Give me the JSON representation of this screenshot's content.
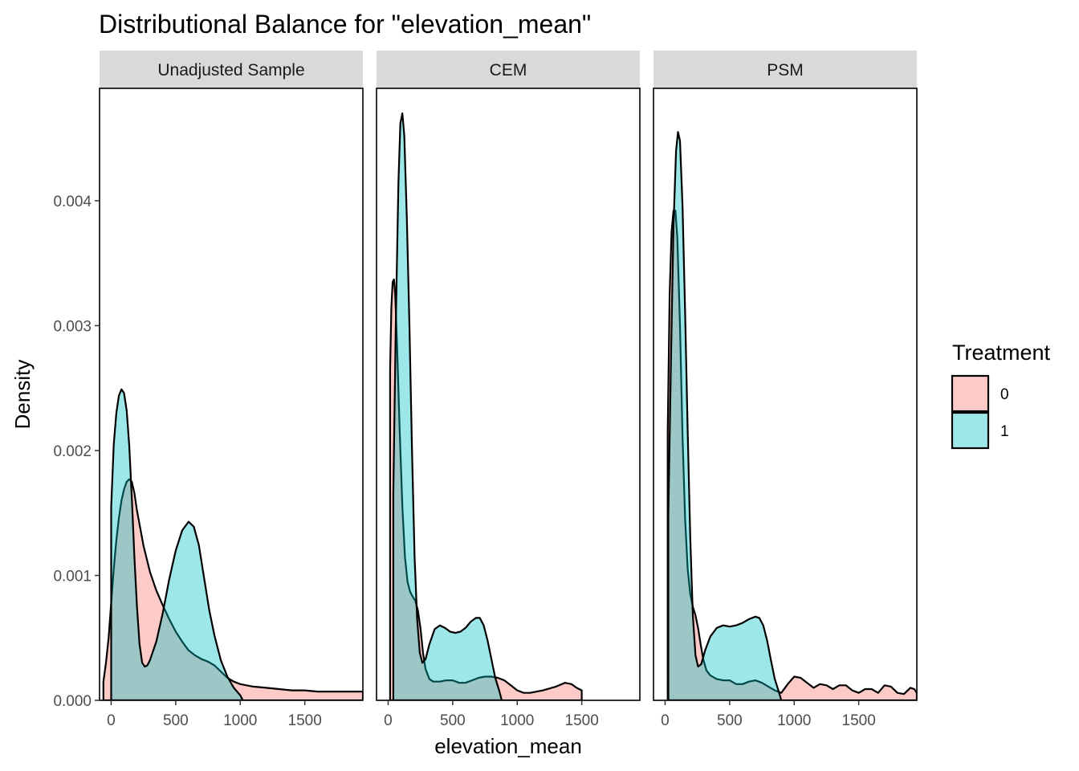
{
  "chart_data": {
    "type": "area",
    "title": "Distributional Balance for \"elevation_mean\"",
    "xlabel": "elevation_mean",
    "ylabel": "Density",
    "xlim": [
      -90,
      1950
    ],
    "ylim": [
      0,
      0.0049
    ],
    "x_ticks": [
      0,
      500,
      1000,
      1500
    ],
    "x_tick_labels": [
      "0",
      "500",
      "1000",
      "1500"
    ],
    "y_ticks": [
      0,
      0.001,
      0.002,
      0.003,
      0.004
    ],
    "y_tick_labels": [
      "0.000",
      "0.001",
      "0.002",
      "0.003",
      "0.004"
    ],
    "legend": {
      "title": "Treatment",
      "position": "right",
      "entries": [
        {
          "label": "0",
          "color": "#F8766D"
        },
        {
          "label": "1",
          "color": "#00BFC4"
        }
      ]
    },
    "fill_alpha": 0.38,
    "panels": [
      {
        "name": "Unadjusted Sample",
        "series": [
          {
            "name": "0",
            "color": "#F8766D",
            "points": [
              [
                -60,
                0
              ],
              [
                -60,
                0.00015
              ],
              [
                -40,
                0.0003
              ],
              [
                -20,
                0.0005
              ],
              [
                0,
                0.00078
              ],
              [
                20,
                0.00105
              ],
              [
                40,
                0.00128
              ],
              [
                60,
                0.00146
              ],
              [
                80,
                0.0016
              ],
              [
                100,
                0.00169
              ],
              [
                120,
                0.00175
              ],
              [
                140,
                0.00177
              ],
              [
                160,
                0.00175
              ],
              [
                180,
                0.00166
              ],
              [
                200,
                0.00152
              ],
              [
                250,
                0.00124
              ],
              [
                300,
                0.00103
              ],
              [
                350,
                0.00088
              ],
              [
                400,
                0.00076
              ],
              [
                450,
                0.00065
              ],
              [
                500,
                0.00055
              ],
              [
                550,
                0.00047
              ],
              [
                600,
                0.0004
              ],
              [
                650,
                0.00036
              ],
              [
                700,
                0.00033
              ],
              [
                750,
                0.00031
              ],
              [
                800,
                0.00028
              ],
              [
                850,
                0.00023
              ],
              [
                900,
                0.00018
              ],
              [
                950,
                0.00015
              ],
              [
                1000,
                0.00013
              ],
              [
                1100,
                0.00011
              ],
              [
                1200,
                0.0001
              ],
              [
                1300,
                9e-05
              ],
              [
                1400,
                8e-05
              ],
              [
                1500,
                8e-05
              ],
              [
                1600,
                7e-05
              ],
              [
                1700,
                7e-05
              ],
              [
                1800,
                7e-05
              ],
              [
                1950,
                7e-05
              ],
              [
                1950,
                0
              ]
            ]
          },
          {
            "name": "1",
            "color": "#00BFC4",
            "points": [
              [
                0,
                0
              ],
              [
                0,
                0.00155
              ],
              [
                20,
                0.00205
              ],
              [
                40,
                0.0023
              ],
              [
                60,
                0.00244
              ],
              [
                80,
                0.00249
              ],
              [
                100,
                0.00246
              ],
              [
                120,
                0.00232
              ],
              [
                140,
                0.00204
              ],
              [
                160,
                0.00162
              ],
              [
                180,
                0.00115
              ],
              [
                200,
                0.00075
              ],
              [
                220,
                0.00045
              ],
              [
                240,
                0.0003
              ],
              [
                260,
                0.00027
              ],
              [
                280,
                0.00028
              ],
              [
                300,
                0.00032
              ],
              [
                350,
                0.00047
              ],
              [
                400,
                0.0007
              ],
              [
                450,
                0.00097
              ],
              [
                500,
                0.0012
              ],
              [
                550,
                0.00136
              ],
              [
                600,
                0.00143
              ],
              [
                640,
                0.00139
              ],
              [
                680,
                0.00124
              ],
              [
                720,
                0.00098
              ],
              [
                760,
                0.00072
              ],
              [
                800,
                0.00052
              ],
              [
                850,
                0.00032
              ],
              [
                900,
                0.00019
              ],
              [
                950,
                0.0001
              ],
              [
                1000,
                4e-05
              ],
              [
                1020,
                0.0
              ],
              [
                1020,
                0
              ]
            ]
          }
        ]
      },
      {
        "name": "CEM",
        "series": [
          {
            "name": "0",
            "color": "#F8766D",
            "points": [
              [
                15,
                0
              ],
              [
                15,
                0.00265
              ],
              [
                25,
                0.00315
              ],
              [
                35,
                0.00335
              ],
              [
                45,
                0.00337
              ],
              [
                55,
                0.00325
              ],
              [
                70,
                0.00282
              ],
              [
                90,
                0.00215
              ],
              [
                110,
                0.00155
              ],
              [
                130,
                0.00115
              ],
              [
                150,
                0.00095
              ],
              [
                170,
                0.00087
              ],
              [
                190,
                0.00083
              ],
              [
                210,
                0.0008
              ],
              [
                230,
                0.00072
              ],
              [
                250,
                0.00058
              ],
              [
                270,
                0.00038
              ],
              [
                290,
                0.00025
              ],
              [
                320,
                0.00017
              ],
              [
                350,
                0.00015
              ],
              [
                400,
                0.00015
              ],
              [
                450,
                0.00016
              ],
              [
                500,
                0.00016
              ],
              [
                550,
                0.00014
              ],
              [
                600,
                0.00014
              ],
              [
                650,
                0.00016
              ],
              [
                700,
                0.00018
              ],
              [
                750,
                0.00019
              ],
              [
                800,
                0.00019
              ],
              [
                850,
                0.00018
              ],
              [
                900,
                0.00016
              ],
              [
                950,
                0.00012
              ],
              [
                1000,
                8e-05
              ],
              [
                1050,
                6e-05
              ],
              [
                1100,
                6e-05
              ],
              [
                1200,
                8e-05
              ],
              [
                1300,
                0.00011
              ],
              [
                1370,
                0.00014
              ],
              [
                1420,
                0.00013
              ],
              [
                1460,
                0.0001
              ],
              [
                1500,
                8e-05
              ],
              [
                1500,
                0
              ]
            ]
          },
          {
            "name": "1",
            "color": "#00BFC4",
            "points": [
              [
                40,
                0
              ],
              [
                40,
                0.00165
              ],
              [
                60,
                0.00305
              ],
              [
                80,
                0.00415
              ],
              [
                95,
                0.00462
              ],
              [
                110,
                0.0047
              ],
              [
                125,
                0.00452
              ],
              [
                145,
                0.00385
              ],
              [
                165,
                0.003
              ],
              [
                185,
                0.002
              ],
              [
                205,
                0.00115
              ],
              [
                225,
                0.00065
              ],
              [
                245,
                0.00038
              ],
              [
                265,
                0.0003
              ],
              [
                290,
                0.00033
              ],
              [
                320,
                0.00045
              ],
              [
                360,
                0.00057
              ],
              [
                400,
                0.0006
              ],
              [
                440,
                0.00058
              ],
              [
                480,
                0.00055
              ],
              [
                520,
                0.00054
              ],
              [
                560,
                0.00055
              ],
              [
                600,
                0.00058
              ],
              [
                640,
                0.00063
              ],
              [
                680,
                0.00066
              ],
              [
                710,
                0.00066
              ],
              [
                740,
                0.0006
              ],
              [
                770,
                0.00048
              ],
              [
                800,
                0.00033
              ],
              [
                830,
                0.00018
              ],
              [
                860,
                8e-05
              ],
              [
                880,
                0.0
              ],
              [
                880,
                0
              ]
            ]
          }
        ]
      },
      {
        "name": "PSM",
        "series": [
          {
            "name": "0",
            "color": "#F8766D",
            "points": [
              [
                20,
                0
              ],
              [
                20,
                0.00215
              ],
              [
                35,
                0.00325
              ],
              [
                50,
                0.00375
              ],
              [
                65,
                0.00392
              ],
              [
                80,
                0.00392
              ],
              [
                95,
                0.0037
              ],
              [
                115,
                0.003
              ],
              [
                135,
                0.0021
              ],
              [
                155,
                0.00145
              ],
              [
                175,
                0.00105
              ],
              [
                195,
                0.00085
              ],
              [
                215,
                0.00075
              ],
              [
                235,
                0.00068
              ],
              [
                255,
                0.00058
              ],
              [
                275,
                0.00045
              ],
              [
                295,
                0.00033
              ],
              [
                320,
                0.00024
              ],
              [
                350,
                0.0002
              ],
              [
                400,
                0.00017
              ],
              [
                450,
                0.00016
              ],
              [
                500,
                0.00016
              ],
              [
                550,
                0.00013
              ],
              [
                600,
                0.00013
              ],
              [
                650,
                0.00015
              ],
              [
                700,
                0.00016
              ],
              [
                750,
                0.00014
              ],
              [
                800,
                0.00011
              ],
              [
                850,
                8e-05
              ],
              [
                900,
                6e-05
              ],
              [
                950,
                0.00013
              ],
              [
                1000,
                0.00019
              ],
              [
                1050,
                0.00018
              ],
              [
                1100,
                0.00014
              ],
              [
                1150,
                0.0001
              ],
              [
                1200,
                0.00013
              ],
              [
                1250,
                0.00012
              ],
              [
                1300,
                9e-05
              ],
              [
                1350,
                0.00012
              ],
              [
                1400,
                0.00012
              ],
              [
                1450,
                8e-05
              ],
              [
                1500,
                6e-05
              ],
              [
                1550,
                9e-05
              ],
              [
                1600,
                9e-05
              ],
              [
                1650,
                6e-05
              ],
              [
                1700,
                0.00012
              ],
              [
                1750,
                0.00011
              ],
              [
                1800,
                6e-05
              ],
              [
                1850,
                5e-05
              ],
              [
                1900,
                0.0001
              ],
              [
                1930,
                9e-05
              ],
              [
                1950,
                6e-05
              ],
              [
                1950,
                0
              ]
            ]
          },
          {
            "name": "1",
            "color": "#00BFC4",
            "points": [
              [
                25,
                0
              ],
              [
                25,
                0.0015
              ],
              [
                45,
                0.0027
              ],
              [
                65,
                0.0038
              ],
              [
                85,
                0.0044
              ],
              [
                100,
                0.00455
              ],
              [
                115,
                0.00448
              ],
              [
                135,
                0.00395
              ],
              [
                155,
                0.0031
              ],
              [
                175,
                0.00215
              ],
              [
                195,
                0.0013
              ],
              [
                215,
                0.00068
              ],
              [
                235,
                0.00036
              ],
              [
                255,
                0.00027
              ],
              [
                280,
                0.00029
              ],
              [
                310,
                0.0004
              ],
              [
                350,
                0.00051
              ],
              [
                400,
                0.00058
              ],
              [
                450,
                0.0006
              ],
              [
                500,
                0.00059
              ],
              [
                550,
                0.0006
              ],
              [
                600,
                0.00062
              ],
              [
                650,
                0.00065
              ],
              [
                700,
                0.00067
              ],
              [
                730,
                0.00066
              ],
              [
                760,
                0.0006
              ],
              [
                790,
                0.00048
              ],
              [
                820,
                0.00032
              ],
              [
                850,
                0.00017
              ],
              [
                880,
                7e-05
              ],
              [
                900,
                0.0
              ],
              [
                900,
                0
              ]
            ]
          }
        ]
      }
    ]
  }
}
